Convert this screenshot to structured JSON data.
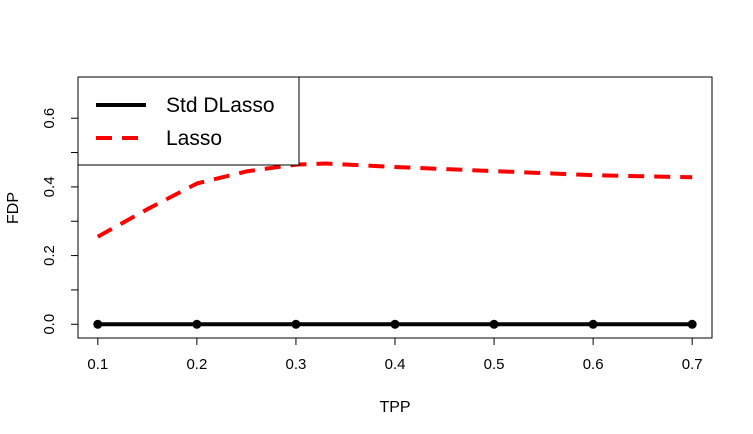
{
  "chart_data": {
    "type": "line",
    "title": "",
    "xlabel": "TPP",
    "ylabel": "FDP",
    "xlim": [
      0.08,
      0.72
    ],
    "ylim": [
      -0.04,
      0.72
    ],
    "x_ticks": [
      "0.1",
      "0.2",
      "0.3",
      "0.4",
      "0.5",
      "0.6",
      "0.7"
    ],
    "y_ticks": [
      "0.0",
      "0.2",
      "0.4",
      "0.6"
    ],
    "grid": false,
    "legend_position": "top-left",
    "series": [
      {
        "name": "Std DLasso",
        "color": "#000000",
        "line_style": "solid",
        "markers": true,
        "x": [
          0.1,
          0.2,
          0.3,
          0.4,
          0.5,
          0.6,
          0.7
        ],
        "y": [
          0.0,
          0.0,
          0.0,
          0.0,
          0.0,
          0.0,
          0.0
        ]
      },
      {
        "name": "Lasso",
        "color": "#ff0000",
        "line_style": "dashed",
        "markers": false,
        "x": [
          0.1,
          0.15,
          0.2,
          0.25,
          0.3,
          0.33,
          0.4,
          0.5,
          0.6,
          0.7
        ],
        "y": [
          0.255,
          0.335,
          0.41,
          0.445,
          0.465,
          0.468,
          0.458,
          0.446,
          0.434,
          0.428
        ]
      }
    ]
  }
}
